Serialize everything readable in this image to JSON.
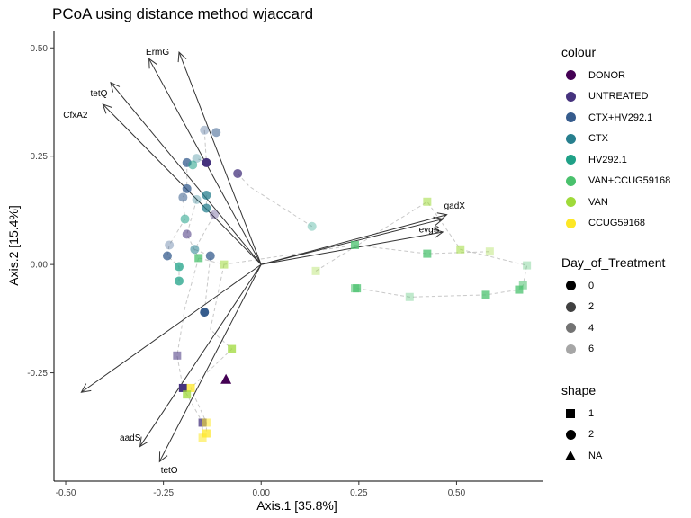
{
  "chart_data": {
    "type": "scatter",
    "title": "PCoA using distance method wjaccard",
    "xlabel": "Axis.1   [35.8%]",
    "ylabel": "Axis.2   [15.4%]",
    "xlim": [
      -0.53,
      0.72
    ],
    "ylim": [
      -0.5,
      0.54
    ],
    "x_ticks": [
      -0.5,
      -0.25,
      0.0,
      0.25,
      0.5
    ],
    "x_tick_labels": [
      "-0.50",
      "-0.25",
      "0.00",
      "0.25",
      "0.50"
    ],
    "y_ticks": [
      -0.25,
      0.0,
      0.25,
      0.5
    ],
    "y_tick_labels": [
      "-0.25",
      "0.00",
      "0.25",
      "0.50"
    ],
    "grid": false,
    "legend_position": "right",
    "vectors": [
      {
        "label": "ErmG",
        "x": -0.287,
        "y": 0.475,
        "lx": -0.265,
        "ly": 0.49
      },
      {
        "label": "",
        "x": -0.21,
        "y": 0.49,
        "lx": 0,
        "ly": 0
      },
      {
        "label": "tetQ",
        "x": -0.385,
        "y": 0.42,
        "lx": -0.415,
        "ly": 0.395
      },
      {
        "label": "CfxA2",
        "x": -0.405,
        "y": 0.37,
        "lx": -0.475,
        "ly": 0.345
      },
      {
        "label": "",
        "x": -0.46,
        "y": -0.295,
        "lx": 0,
        "ly": 0
      },
      {
        "label": "aadS",
        "x": -0.31,
        "y": -0.42,
        "lx": -0.335,
        "ly": -0.4
      },
      {
        "label": "tetO",
        "x": -0.26,
        "y": -0.455,
        "lx": -0.235,
        "ly": -0.475
      },
      {
        "label": "gadX",
        "x": 0.475,
        "y": 0.115,
        "lx": 0.495,
        "ly": 0.135
      },
      {
        "label": "",
        "x": 0.465,
        "y": 0.105,
        "lx": 0,
        "ly": 0
      },
      {
        "label": "evgS",
        "x": 0.465,
        "y": 0.075,
        "lx": 0.43,
        "ly": 0.08
      }
    ],
    "points": [
      {
        "x": -0.145,
        "y": 0.31,
        "c": 2,
        "d": 6,
        "s": "circle"
      },
      {
        "x": -0.115,
        "y": 0.305,
        "c": 2,
        "d": 4,
        "s": "circle"
      },
      {
        "x": -0.06,
        "y": 0.21,
        "c": 1,
        "d": 2,
        "s": "circle"
      },
      {
        "x": -0.14,
        "y": 0.235,
        "c": 1,
        "d": 0,
        "s": "circle"
      },
      {
        "x": -0.165,
        "y": 0.245,
        "c": 3,
        "d": 6,
        "s": "circle"
      },
      {
        "x": -0.19,
        "y": 0.235,
        "c": 2,
        "d": 2,
        "s": "circle"
      },
      {
        "x": -0.175,
        "y": 0.23,
        "c": 4,
        "d": 4,
        "s": "circle"
      },
      {
        "x": -0.19,
        "y": 0.175,
        "c": 2,
        "d": 2,
        "s": "circle"
      },
      {
        "x": -0.14,
        "y": 0.16,
        "c": 3,
        "d": 2,
        "s": "circle"
      },
      {
        "x": -0.2,
        "y": 0.155,
        "c": 2,
        "d": 4,
        "s": "circle"
      },
      {
        "x": -0.165,
        "y": 0.15,
        "c": 3,
        "d": 6,
        "s": "circle"
      },
      {
        "x": -0.14,
        "y": 0.13,
        "c": 3,
        "d": 2,
        "s": "circle"
      },
      {
        "x": -0.12,
        "y": 0.115,
        "c": 1,
        "d": 6,
        "s": "circle"
      },
      {
        "x": -0.195,
        "y": 0.105,
        "c": 4,
        "d": 4,
        "s": "circle"
      },
      {
        "x": -0.19,
        "y": 0.07,
        "c": 1,
        "d": 4,
        "s": "circle"
      },
      {
        "x": -0.235,
        "y": 0.045,
        "c": 2,
        "d": 6,
        "s": "circle"
      },
      {
        "x": -0.17,
        "y": 0.035,
        "c": 3,
        "d": 4,
        "s": "circle"
      },
      {
        "x": -0.24,
        "y": 0.02,
        "c": 2,
        "d": 2,
        "s": "circle"
      },
      {
        "x": -0.13,
        "y": 0.02,
        "c": 2,
        "d": 2,
        "s": "circle"
      },
      {
        "x": -0.21,
        "y": -0.005,
        "c": 4,
        "d": 2,
        "s": "circle"
      },
      {
        "x": -0.21,
        "y": -0.038,
        "c": 4,
        "d": 2,
        "s": "circle"
      },
      {
        "x": -0.145,
        "y": -0.11,
        "c": 2,
        "d": 0,
        "s": "circle"
      },
      {
        "x": 0.13,
        "y": 0.088,
        "c": 4,
        "d": 6,
        "s": "circle"
      },
      {
        "x": -0.16,
        "y": 0.015,
        "c": 5,
        "d": 2,
        "s": "square"
      },
      {
        "x": -0.095,
        "y": 0.0,
        "c": 6,
        "d": 4,
        "s": "square"
      },
      {
        "x": -0.075,
        "y": -0.195,
        "c": 6,
        "d": 2,
        "s": "square"
      },
      {
        "x": -0.215,
        "y": -0.21,
        "c": 1,
        "d": 4,
        "s": "square"
      },
      {
        "x": -0.2,
        "y": -0.285,
        "c": 1,
        "d": 0,
        "s": "square"
      },
      {
        "x": -0.18,
        "y": -0.285,
        "c": 7,
        "d": 2,
        "s": "square"
      },
      {
        "x": -0.19,
        "y": -0.3,
        "c": 6,
        "d": 2,
        "s": "square"
      },
      {
        "x": -0.15,
        "y": -0.365,
        "c": 1,
        "d": 2,
        "s": "square"
      },
      {
        "x": -0.14,
        "y": -0.365,
        "c": 7,
        "d": 4,
        "s": "square"
      },
      {
        "x": -0.14,
        "y": -0.39,
        "c": 7,
        "d": 2,
        "s": "square"
      },
      {
        "x": -0.15,
        "y": -0.4,
        "c": 7,
        "d": 4,
        "s": "square"
      },
      {
        "x": -0.09,
        "y": -0.265,
        "c": 0,
        "d": 0,
        "s": "triangle"
      },
      {
        "x": 0.24,
        "y": 0.045,
        "c": 5,
        "d": 2,
        "s": "square"
      },
      {
        "x": 0.245,
        "y": -0.055,
        "c": 5,
        "d": 2,
        "s": "square"
      },
      {
        "x": 0.24,
        "y": -0.055,
        "c": 5,
        "d": 4,
        "s": "square"
      },
      {
        "x": 0.425,
        "y": 0.145,
        "c": 6,
        "d": 4,
        "s": "square"
      },
      {
        "x": 0.425,
        "y": 0.025,
        "c": 5,
        "d": 2,
        "s": "square"
      },
      {
        "x": 0.51,
        "y": 0.035,
        "c": 6,
        "d": 4,
        "s": "square"
      },
      {
        "x": 0.585,
        "y": 0.03,
        "c": 6,
        "d": 6,
        "s": "square"
      },
      {
        "x": 0.14,
        "y": -0.015,
        "c": 6,
        "d": 6,
        "s": "square"
      },
      {
        "x": 0.38,
        "y": -0.075,
        "c": 5,
        "d": 6,
        "s": "square"
      },
      {
        "x": 0.575,
        "y": -0.07,
        "c": 5,
        "d": 2,
        "s": "square"
      },
      {
        "x": 0.66,
        "y": -0.058,
        "c": 5,
        "d": 2,
        "s": "square"
      },
      {
        "x": 0.67,
        "y": -0.048,
        "c": 5,
        "d": 4,
        "s": "square"
      },
      {
        "x": 0.68,
        "y": -0.002,
        "c": 5,
        "d": 6,
        "s": "square"
      }
    ],
    "paths": [
      [
        [
          -0.145,
          0.31
        ],
        [
          -0.14,
          0.235
        ],
        [
          -0.165,
          0.245
        ]
      ],
      [
        [
          -0.06,
          0.21
        ],
        [
          -0.03,
          0.18
        ],
        [
          0.13,
          0.088
        ]
      ],
      [
        [
          -0.19,
          0.235
        ],
        [
          -0.19,
          0.175
        ],
        [
          -0.2,
          0.155
        ],
        [
          -0.195,
          0.105
        ],
        [
          -0.235,
          0.045
        ],
        [
          -0.24,
          0.02
        ],
        [
          -0.21,
          -0.005
        ],
        [
          -0.21,
          -0.038
        ]
      ],
      [
        [
          -0.14,
          0.16
        ],
        [
          -0.14,
          0.13
        ],
        [
          -0.12,
          0.115
        ],
        [
          -0.17,
          0.035
        ],
        [
          -0.13,
          0.02
        ],
        [
          -0.145,
          -0.11
        ]
      ],
      [
        [
          -0.165,
          0.15
        ],
        [
          -0.19,
          0.07
        ],
        [
          -0.16,
          0.015
        ],
        [
          -0.095,
          0.0
        ],
        [
          0.24,
          0.045
        ],
        [
          0.425,
          0.025
        ],
        [
          0.585,
          0.03
        ]
      ],
      [
        [
          -0.16,
          0.015
        ],
        [
          -0.195,
          -0.1
        ],
        [
          -0.215,
          -0.21
        ],
        [
          -0.2,
          -0.285
        ],
        [
          -0.19,
          -0.3
        ],
        [
          -0.15,
          -0.365
        ],
        [
          -0.15,
          -0.4
        ]
      ],
      [
        [
          -0.095,
          0.0
        ],
        [
          -0.13,
          -0.15
        ],
        [
          -0.075,
          -0.195
        ],
        [
          -0.18,
          -0.285
        ],
        [
          -0.14,
          -0.365
        ],
        [
          -0.14,
          -0.39
        ]
      ],
      [
        [
          0.14,
          -0.015
        ],
        [
          0.425,
          0.145
        ],
        [
          0.51,
          0.035
        ],
        [
          0.68,
          -0.002
        ],
        [
          0.67,
          -0.048
        ],
        [
          0.66,
          -0.058
        ]
      ],
      [
        [
          0.245,
          -0.055
        ],
        [
          0.38,
          -0.075
        ],
        [
          0.575,
          -0.07
        ],
        [
          0.66,
          -0.058
        ]
      ]
    ]
  },
  "legend": {
    "colour": {
      "title": "colour",
      "items": [
        {
          "label": "DONOR",
          "color": "#440154"
        },
        {
          "label": "UNTREATED",
          "color": "#46337E"
        },
        {
          "label": "CTX+HV292.1",
          "color": "#365C8D"
        },
        {
          "label": "CTX",
          "color": "#277F8E"
        },
        {
          "label": "HV292.1",
          "color": "#1FA187"
        },
        {
          "label": "VAN+CCUG59168",
          "color": "#4AC16D"
        },
        {
          "label": "VAN",
          "color": "#9FDA3A"
        },
        {
          "label": "CCUG59168",
          "color": "#FDE725"
        }
      ]
    },
    "day": {
      "title": "Day_of_Treatment",
      "items": [
        {
          "label": "0",
          "alpha": 1.0
        },
        {
          "label": "2",
          "alpha": 0.75
        },
        {
          "label": "4",
          "alpha": 0.55
        },
        {
          "label": "6",
          "alpha": 0.35
        }
      ]
    },
    "shape": {
      "title": "shape",
      "items": [
        {
          "label": "1",
          "shape": "square"
        },
        {
          "label": "2",
          "shape": "circle"
        },
        {
          "label": "NA",
          "shape": "triangle"
        }
      ]
    }
  }
}
